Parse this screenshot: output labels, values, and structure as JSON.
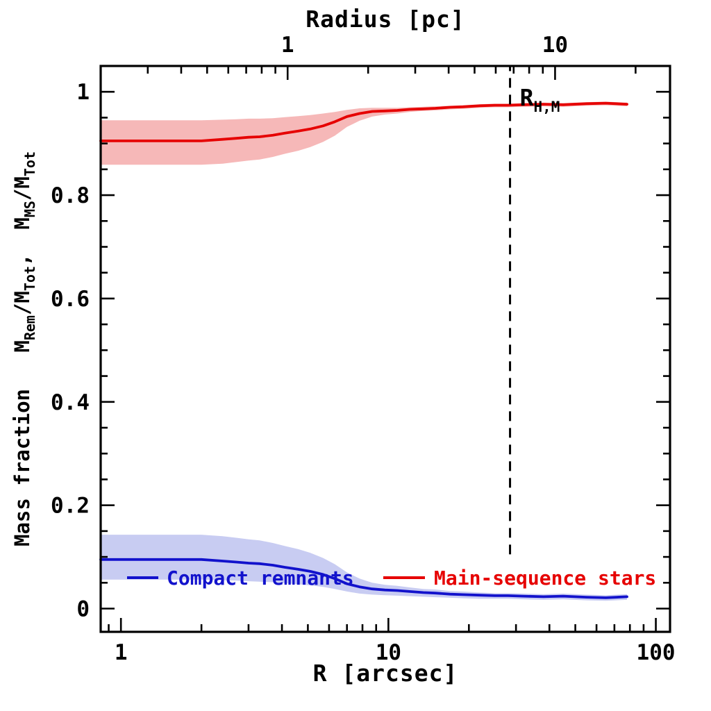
{
  "figure": {
    "top_axis_title": "Radius [pc]",
    "bottom_axis_title": "R [arcsec]",
    "ylabel_text": "Mass fraction  M_Rem/M_Tot, M_MS/M_Tot",
    "ylabel_parts": [
      {
        "t": "Mass fraction   "
      },
      {
        "t": "M"
      },
      {
        "s": "Rem"
      },
      {
        "t": "/M"
      },
      {
        "s": "Tot"
      },
      {
        "t": ",  M"
      },
      {
        "s": "MS"
      },
      {
        "t": "/M"
      },
      {
        "s": "Tot"
      }
    ]
  },
  "chart_data": {
    "type": "line",
    "xscale": "log",
    "x_units_bottom": "arcsec",
    "x_units_top": "pc",
    "xlim_arcsec": [
      0.84,
      113
    ],
    "ylim": [
      -0.045,
      1.05
    ],
    "arcsec_per_pc": 4.2,
    "grid": false,
    "x_ticks_bottom": {
      "major": [
        1,
        10,
        100
      ],
      "labels": [
        "1",
        "10",
        "100"
      ]
    },
    "x_ticks_top": {
      "major": [
        1,
        10
      ],
      "labels": [
        "1",
        "10"
      ]
    },
    "y_ticks": {
      "major": [
        0,
        0.2,
        0.4,
        0.6,
        0.8,
        1.0
      ],
      "labels": [
        "0",
        "0.2",
        "0.4",
        "0.6",
        "0.8",
        "1"
      ],
      "minor_step": 0.05
    },
    "x": [
      0.84,
      1.0,
      1.3,
      1.6,
      2.0,
      2.4,
      2.7,
      3.0,
      3.3,
      3.7,
      4.1,
      4.6,
      5.1,
      5.7,
      6.3,
      7.0,
      7.8,
      8.7,
      9.7,
      10.8,
      12,
      13.5,
      15,
      17,
      19,
      22,
      25,
      28,
      32,
      38,
      45,
      55,
      65,
      78
    ],
    "series": [
      {
        "name": "Main-sequence stars",
        "color": "#e60000",
        "band_color": "#f6b8b8",
        "values": [
          0.905,
          0.905,
          0.905,
          0.905,
          0.905,
          0.908,
          0.91,
          0.912,
          0.913,
          0.916,
          0.92,
          0.924,
          0.928,
          0.934,
          0.942,
          0.952,
          0.958,
          0.962,
          0.963,
          0.964,
          0.966,
          0.967,
          0.968,
          0.97,
          0.971,
          0.973,
          0.974,
          0.974,
          0.975,
          0.976,
          0.975,
          0.977,
          0.978,
          0.976
        ],
        "band_upper": [
          0.945,
          0.945,
          0.945,
          0.945,
          0.945,
          0.946,
          0.947,
          0.948,
          0.948,
          0.949,
          0.951,
          0.953,
          0.955,
          0.958,
          0.961,
          0.965,
          0.968,
          0.969,
          0.969,
          0.969,
          0.97,
          0.971,
          0.972,
          0.973,
          0.974,
          0.976,
          0.977,
          0.977,
          0.978,
          0.979,
          0.978,
          0.98,
          0.981,
          0.979
        ],
        "band_lower": [
          0.859,
          0.859,
          0.859,
          0.859,
          0.859,
          0.861,
          0.864,
          0.867,
          0.869,
          0.874,
          0.88,
          0.886,
          0.893,
          0.903,
          0.915,
          0.932,
          0.944,
          0.952,
          0.956,
          0.958,
          0.961,
          0.963,
          0.964,
          0.966,
          0.967,
          0.969,
          0.97,
          0.97,
          0.971,
          0.972,
          0.971,
          0.973,
          0.974,
          0.972
        ]
      },
      {
        "name": "Compact remnants",
        "color": "#1212cc",
        "band_color": "#c8ccf2",
        "values": [
          0.095,
          0.095,
          0.095,
          0.095,
          0.095,
          0.092,
          0.09,
          0.088,
          0.087,
          0.084,
          0.08,
          0.076,
          0.072,
          0.066,
          0.058,
          0.048,
          0.042,
          0.038,
          0.036,
          0.035,
          0.033,
          0.031,
          0.03,
          0.028,
          0.027,
          0.026,
          0.025,
          0.025,
          0.024,
          0.023,
          0.024,
          0.022,
          0.021,
          0.023
        ],
        "band_upper": [
          0.143,
          0.143,
          0.143,
          0.143,
          0.143,
          0.14,
          0.137,
          0.134,
          0.132,
          0.127,
          0.121,
          0.115,
          0.108,
          0.098,
          0.086,
          0.07,
          0.058,
          0.05,
          0.046,
          0.044,
          0.041,
          0.038,
          0.037,
          0.034,
          0.033,
          0.031,
          0.03,
          0.03,
          0.029,
          0.028,
          0.029,
          0.027,
          0.026,
          0.028
        ],
        "band_lower": [
          0.056,
          0.056,
          0.056,
          0.056,
          0.056,
          0.055,
          0.054,
          0.053,
          0.052,
          0.051,
          0.049,
          0.047,
          0.045,
          0.042,
          0.038,
          0.033,
          0.029,
          0.027,
          0.026,
          0.025,
          0.024,
          0.023,
          0.022,
          0.021,
          0.02,
          0.019,
          0.019,
          0.019,
          0.018,
          0.017,
          0.018,
          0.016,
          0.015,
          0.017
        ]
      }
    ],
    "vline": {
      "x_arcsec": 28.5,
      "y_from": 0.105,
      "y_to": 1.05,
      "style": "dashed",
      "color": "#000000",
      "label": "R",
      "label_sub": "H,M"
    },
    "legend": [
      {
        "label": "Compact remnants",
        "color": "#1212cc"
      },
      {
        "label": "Main-sequence stars",
        "color": "#e60000"
      }
    ]
  }
}
